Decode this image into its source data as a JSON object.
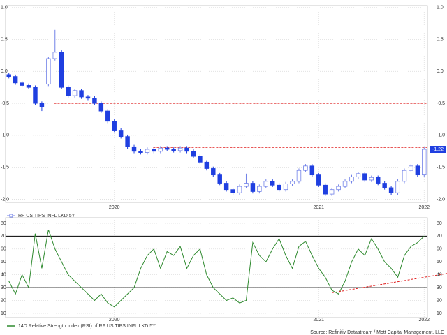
{
  "chart_data": [
    {
      "type": "candlestick",
      "categories": [
        null,
        null,
        null,
        null,
        null,
        null,
        null,
        null,
        null,
        null,
        null,
        null,
        null,
        null,
        null,
        null,
        "2020",
        null,
        null,
        null,
        null,
        null,
        null,
        null,
        null,
        null,
        null,
        null,
        null,
        null,
        null,
        null,
        null,
        null,
        null,
        null,
        null,
        null,
        null,
        null,
        null,
        null,
        null,
        null,
        null,
        null,
        null,
        "2021",
        null,
        null,
        null,
        null,
        null,
        null,
        null,
        null,
        null,
        null,
        null,
        null,
        null,
        null,
        null,
        "2022"
      ],
      "series": [
        {
          "name": "RF US TIPS INFL LKD 5Y",
          "color": "#1f3fe0",
          "open": [
            -0.05,
            -0.08,
            -0.18,
            -0.22,
            -0.25,
            -0.5,
            -0.2,
            0.2,
            0.3,
            -0.25,
            -0.38,
            -0.3,
            -0.4,
            -0.42,
            -0.5,
            -0.62,
            -0.78,
            -0.92,
            -1.02,
            -1.18,
            -1.25,
            -1.27,
            -1.22,
            -1.25,
            -1.2,
            -1.22,
            -1.24,
            -1.2,
            -1.25,
            -1.33,
            -1.42,
            -1.52,
            -1.62,
            -1.75,
            -1.85,
            -1.9,
            -1.8,
            -1.75,
            -1.88,
            -1.8,
            -1.72,
            -1.78,
            -1.85,
            -1.76,
            -1.72,
            -1.55,
            -1.48,
            -1.62,
            -1.78,
            -1.92,
            -1.85,
            -1.8,
            -1.72,
            -1.65,
            -1.6,
            -1.7,
            -1.66,
            -1.75,
            -1.82,
            -1.9,
            -1.72,
            -1.55,
            -1.48,
            -1.62
          ],
          "high": [
            -0.02,
            -0.05,
            -0.15,
            -0.19,
            -0.22,
            -0.47,
            0.23,
            0.65,
            0.33,
            -0.22,
            -0.27,
            -0.27,
            -0.37,
            -0.39,
            -0.47,
            -0.59,
            -0.75,
            -0.89,
            -0.99,
            -1.15,
            -1.22,
            -1.19,
            -1.19,
            -1.17,
            -1.17,
            -1.19,
            -1.17,
            -1.17,
            -1.22,
            -1.3,
            -1.39,
            -1.49,
            -1.59,
            -1.72,
            -1.82,
            -1.77,
            -1.6,
            -1.72,
            -1.77,
            -1.69,
            -1.69,
            -1.75,
            -1.73,
            -1.69,
            -1.52,
            -1.45,
            -1.45,
            -1.59,
            -1.75,
            -1.82,
            -1.77,
            -1.69,
            -1.62,
            -1.57,
            -1.57,
            -1.63,
            -1.63,
            -1.72,
            -1.79,
            -1.69,
            -1.52,
            -1.45,
            -1.45,
            -1.19
          ],
          "low": [
            -0.11,
            -0.21,
            -0.25,
            -0.28,
            -0.53,
            -0.62,
            -0.23,
            0.17,
            -0.28,
            -0.41,
            -0.41,
            -0.43,
            -0.45,
            -0.53,
            -0.65,
            -0.81,
            -0.95,
            -1.05,
            -1.21,
            -1.28,
            -1.3,
            -1.3,
            -1.28,
            -1.28,
            -1.25,
            -1.27,
            -1.27,
            -1.28,
            -1.36,
            -1.45,
            -1.55,
            -1.65,
            -1.78,
            -1.88,
            -1.93,
            -1.93,
            -1.83,
            -1.91,
            -1.91,
            -1.83,
            -1.81,
            -1.88,
            -1.88,
            -1.79,
            -1.75,
            -1.58,
            -1.65,
            -1.81,
            -1.95,
            -1.95,
            -1.88,
            -1.83,
            -1.75,
            -1.68,
            -1.73,
            -1.73,
            -1.78,
            -1.85,
            -1.93,
            -1.93,
            -1.75,
            -1.58,
            -1.65,
            -1.65
          ],
          "close": [
            -0.08,
            -0.18,
            -0.22,
            -0.25,
            -0.5,
            -0.55,
            0.2,
            0.3,
            -0.25,
            -0.38,
            -0.3,
            -0.4,
            -0.42,
            -0.5,
            -0.62,
            -0.78,
            -0.92,
            -1.02,
            -1.18,
            -1.25,
            -1.27,
            -1.22,
            -1.25,
            -1.2,
            -1.22,
            -1.24,
            -1.2,
            -1.25,
            -1.33,
            -1.42,
            -1.52,
            -1.62,
            -1.75,
            -1.85,
            -1.9,
            -1.8,
            -1.75,
            -1.88,
            -1.8,
            -1.72,
            -1.78,
            -1.85,
            -1.76,
            -1.72,
            -1.55,
            -1.48,
            -1.62,
            -1.78,
            -1.92,
            -1.85,
            -1.8,
            -1.72,
            -1.65,
            -1.6,
            -1.7,
            -1.66,
            -1.75,
            -1.82,
            -1.9,
            -1.72,
            -1.55,
            -1.48,
            -1.62,
            -1.22
          ]
        }
      ],
      "last_value": -1.22,
      "reference_lines": [
        -0.5,
        -1.19
      ],
      "reference_color": "#e02020",
      "ylim": [
        -2.05,
        1.03
      ],
      "yticks": [
        {
          "value": 1.0,
          "label": "1.0"
        },
        0.5,
        {
          "value": 0.0,
          "label": "0.0"
        },
        -0.5,
        {
          "value": -1.0,
          "label": "-1.0"
        },
        -1.5,
        {
          "value": -2.0,
          "label": "-2.0"
        }
      ],
      "grid": true
    },
    {
      "type": "line",
      "categories": [
        null,
        null,
        null,
        null,
        null,
        null,
        null,
        null,
        null,
        null,
        null,
        null,
        null,
        null,
        null,
        null,
        "2020",
        null,
        null,
        null,
        null,
        null,
        null,
        null,
        null,
        null,
        null,
        null,
        null,
        null,
        null,
        null,
        null,
        null,
        null,
        null,
        null,
        null,
        null,
        null,
        null,
        null,
        null,
        null,
        null,
        null,
        null,
        "2021",
        null,
        null,
        null,
        null,
        null,
        null,
        null,
        null,
        null,
        null,
        null,
        null,
        null,
        null,
        null,
        "2022"
      ],
      "series": [
        {
          "name": "14D Relative Strength Index (RSI) of RF US TIPS INFL LKD 5Y",
          "color": "#2f8a2f",
          "values": [
            35,
            25,
            40,
            30,
            72,
            45,
            75,
            60,
            50,
            40,
            35,
            30,
            25,
            20,
            25,
            18,
            15,
            20,
            25,
            30,
            45,
            55,
            60,
            45,
            58,
            55,
            62,
            45,
            55,
            60,
            40,
            30,
            25,
            20,
            22,
            18,
            20,
            65,
            55,
            50,
            60,
            68,
            55,
            45,
            62,
            66,
            55,
            45,
            38,
            28,
            25,
            35,
            50,
            60,
            55,
            68,
            60,
            50,
            45,
            38,
            55,
            62,
            65,
            70
          ]
        }
      ],
      "reference_lines": [
        30,
        70
      ],
      "trend_line": [
        26,
        41
      ],
      "trend_color": "#e02020",
      "ylim": [
        6.7,
        84.3
      ],
      "yticks": [
        10,
        20,
        30,
        40,
        50,
        60,
        70,
        80
      ],
      "grid": true
    }
  ],
  "source": "Source: Refinitiv Datastream / Mott Capital Management, LLC"
}
